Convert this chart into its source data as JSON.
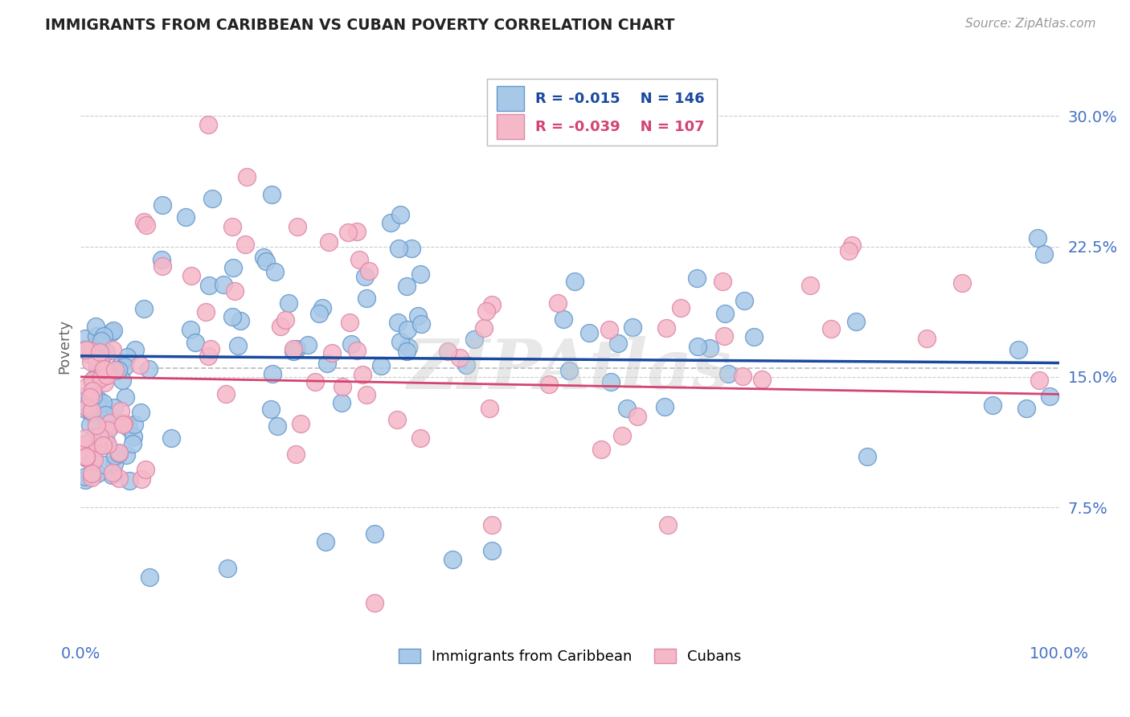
{
  "title": "IMMIGRANTS FROM CARIBBEAN VS CUBAN POVERTY CORRELATION CHART",
  "source": "Source: ZipAtlas.com",
  "ylabel": "Poverty",
  "y_ticks": [
    0.075,
    0.15,
    0.225,
    0.3
  ],
  "y_tick_labels": [
    "7.5%",
    "15.0%",
    "22.5%",
    "30.0%"
  ],
  "ylim": [
    0.0,
    0.335
  ],
  "xlim": [
    0.0,
    1.0
  ],
  "blue_R": "-0.015",
  "blue_N": "146",
  "pink_R": "-0.039",
  "pink_N": "107",
  "blue_color": "#a8c8e8",
  "pink_color": "#f5b8c8",
  "blue_edge_color": "#6699cc",
  "pink_edge_color": "#dd88aa",
  "blue_line_color": "#1a4a9e",
  "pink_line_color": "#d44470",
  "dashed_line_color": "#bbbbbb",
  "watermark": "ZIPAtlas",
  "legend_label_blue": "Immigrants from Caribbean",
  "legend_label_pink": "Cubans",
  "background_color": "#ffffff",
  "grid_color": "#cccccc",
  "title_color": "#222222",
  "axis_color": "#4472c4",
  "blue_line_start_y": 0.162,
  "blue_line_end_y": 0.158,
  "pink_line_start_y": 0.15,
  "pink_line_end_y": 0.14,
  "dashed_line_y": 0.155
}
